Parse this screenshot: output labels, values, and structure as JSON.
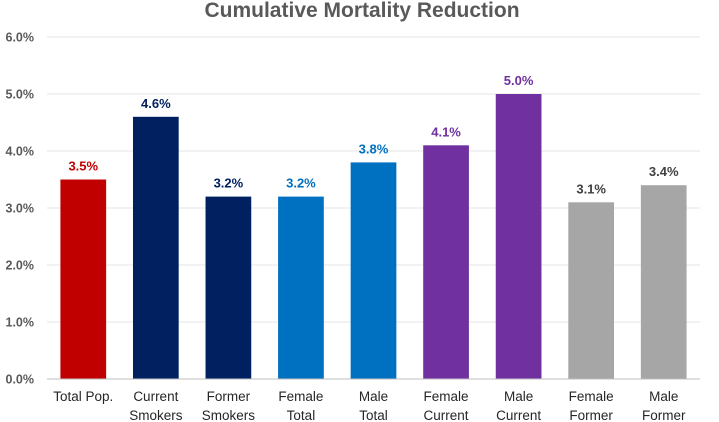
{
  "chart_data": {
    "type": "bar",
    "title": "Cumulative Mortality Reduction",
    "xlabel": "",
    "ylabel": "",
    "ylim": [
      0,
      6
    ],
    "y_ticks": [
      "0.0%",
      "1.0%",
      "2.0%",
      "3.0%",
      "4.0%",
      "5.0%",
      "6.0%"
    ],
    "grid": true,
    "legend": "none",
    "categories": [
      [
        "Total Pop."
      ],
      [
        "Current",
        "Smokers"
      ],
      [
        "Former",
        "Smokers"
      ],
      [
        "Female",
        "Total"
      ],
      [
        "Male",
        "Total"
      ],
      [
        "Female",
        "Current"
      ],
      [
        "Male",
        "Current"
      ],
      [
        "Female",
        "Former"
      ],
      [
        "Male",
        "Former"
      ]
    ],
    "values": [
      3.5,
      4.6,
      3.2,
      3.2,
      3.8,
      4.1,
      5.0,
      3.1,
      3.4
    ],
    "data_labels": [
      "3.5%",
      "4.6%",
      "3.2%",
      "3.2%",
      "3.8%",
      "4.1%",
      "5.0%",
      "3.1%",
      "3.4%"
    ],
    "colors": [
      "#c00000",
      "#002060",
      "#002060",
      "#0070c0",
      "#0070c0",
      "#7030a0",
      "#7030a0",
      "#a6a6a6",
      "#a6a6a6"
    ],
    "label_colors": [
      "#c00000",
      "#002060",
      "#002060",
      "#0070c0",
      "#0070c0",
      "#7030a0",
      "#7030a0",
      "#404040",
      "#404040"
    ]
  }
}
